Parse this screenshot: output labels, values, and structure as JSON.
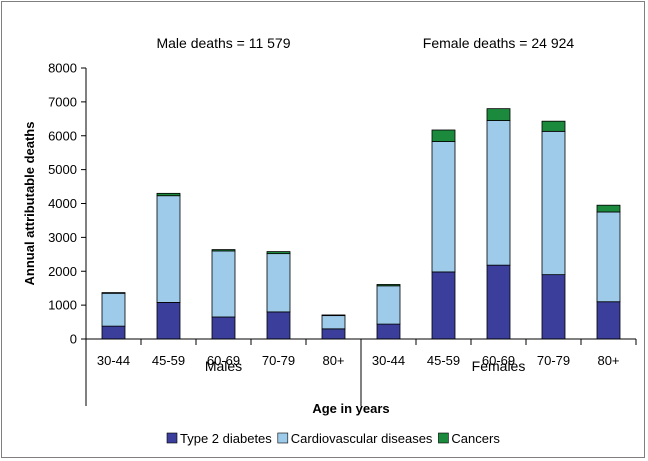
{
  "chart_data": {
    "type": "bar",
    "stacked": true,
    "grid": false,
    "legend_position": "bottom",
    "ylabel": "Annual attributable deaths",
    "xlabel": "Age in years",
    "ylim": [
      0,
      8000
    ],
    "yticks": [
      0,
      1000,
      2000,
      3000,
      4000,
      5000,
      6000,
      7000,
      8000
    ],
    "groups": [
      {
        "name": "Males",
        "annotation": "Male deaths = 11 579",
        "categories": [
          "30-44",
          "45-59",
          "60-69",
          "70-79",
          "80+"
        ]
      },
      {
        "name": "Females",
        "annotation": "Female deaths = 24 924",
        "categories": [
          "30-44",
          "45-59",
          "60-69",
          "70-79",
          "80+"
        ]
      }
    ],
    "series": [
      {
        "name": "Type 2 diabetes",
        "color": "#3b3f9b",
        "values": [
          380,
          1080,
          650,
          800,
          300,
          440,
          1980,
          2180,
          1900,
          1100
        ]
      },
      {
        "name": "Cardiovascular diseases",
        "color": "#9ecbea",
        "values": [
          970,
          3150,
          1950,
          1720,
          390,
          1130,
          3850,
          4270,
          4230,
          2650
        ]
      },
      {
        "name": "Cancers",
        "color": "#1c8a3c",
        "values": [
          20,
          70,
          40,
          60,
          20,
          40,
          340,
          350,
          300,
          200
        ]
      }
    ]
  }
}
